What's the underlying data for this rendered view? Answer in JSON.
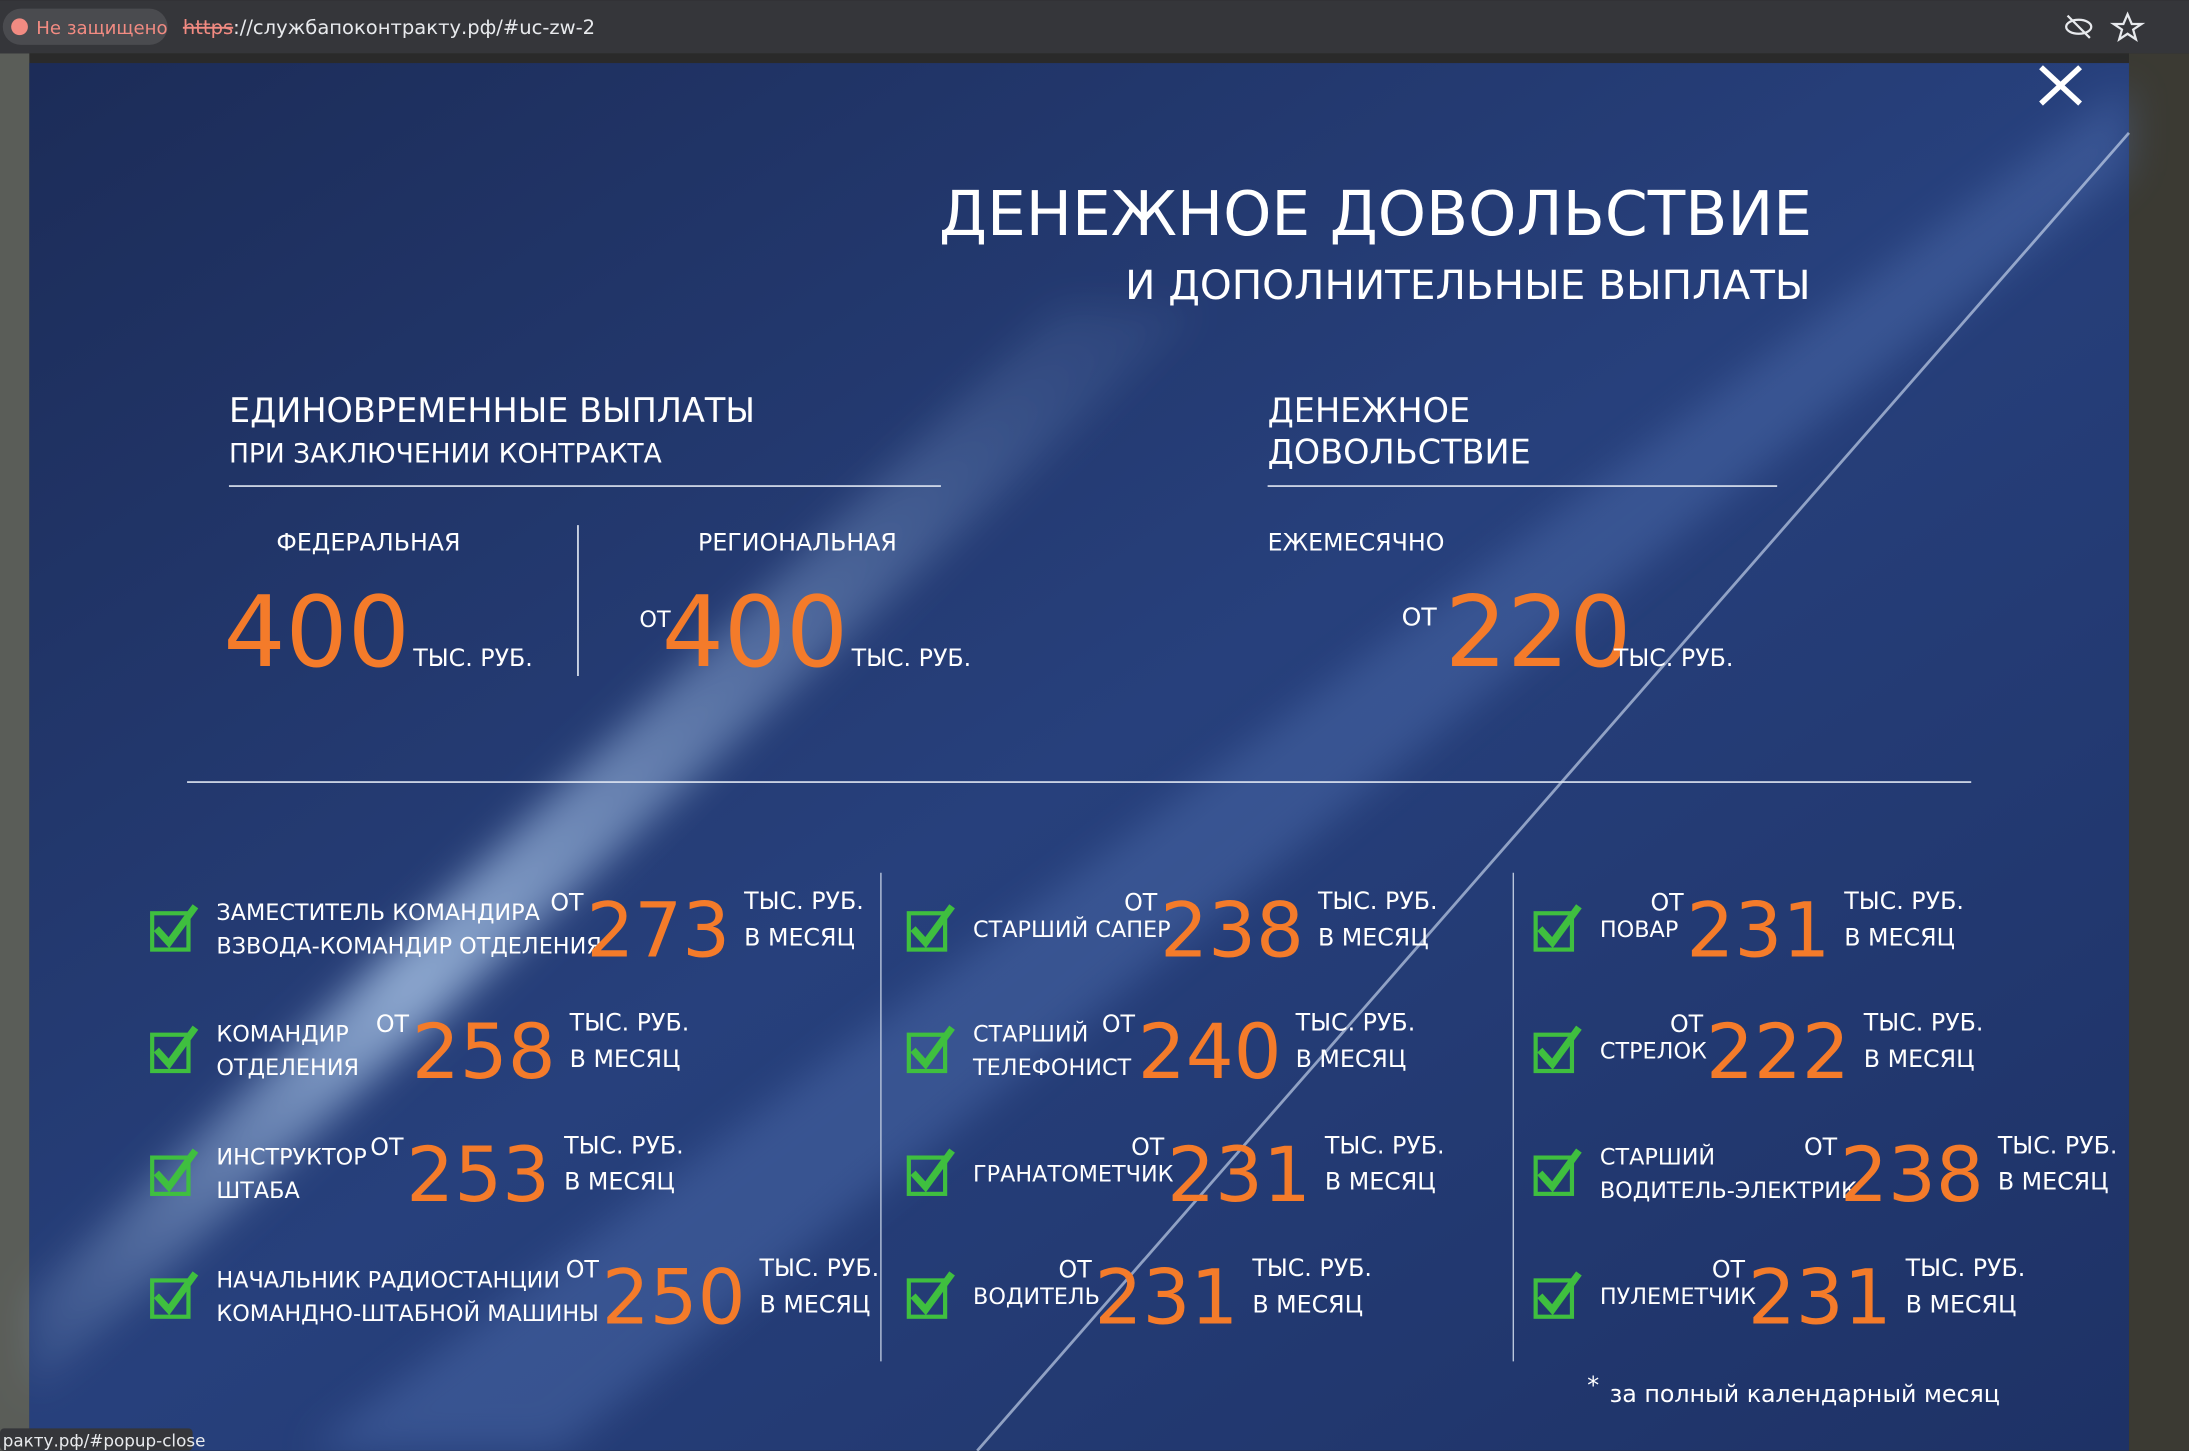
{
  "browser": {
    "security": "Не защищено",
    "url_scheme": "https",
    "url_rest": "://службапоконтракту.рф/#uc-zw-2",
    "status": "ракту.рф/#popup-close"
  },
  "popup": {
    "title": "ДЕНЕЖНОЕ ДОВОЛЬСТВИЕ",
    "subtitle": "И ДОПОЛНИТЕЛЬНЫЕ ВЫПЛАТЫ",
    "one_time": {
      "heading": "ЕДИНОВРЕМЕННЫЕ ВЫПЛАТЫ",
      "subheading": "ПРИ ЗАКЛЮЧЕНИИ КОНТРАКТА",
      "items": [
        {
          "label": "ФЕДЕРАЛЬНАЯ",
          "amount": 400,
          "unit": "ТЫС. РУБ."
        },
        {
          "label": "РЕГИОНАЛЬНАЯ",
          "prefix": "ОТ",
          "amount": 400,
          "unit": "ТЫС. РУБ."
        }
      ]
    },
    "salary": {
      "heading": [
        "ДЕНЕЖНОЕ",
        "ДОВОЛЬСТВИЕ"
      ],
      "label": "ЕЖЕМЕСЯЧНО",
      "prefix": "ОТ",
      "amount": 220,
      "unit": "ТЫС. РУБ."
    },
    "positions": {
      "columns": [
        [
          {
            "title": [
              "ЗАМЕСТИТЕЛЬ КОМАНДИРА",
              "ВЗВОДА-КОМАНДИР ОТДЕЛЕНИЯ"
            ],
            "prefix": "ОТ",
            "amount": 273,
            "unit": [
              "ТЫС. РУБ.",
              "В МЕСЯЦ"
            ]
          },
          {
            "title": [
              "КОМАНДИР",
              "ОТДЕЛЕНИЯ"
            ],
            "prefix": "ОТ",
            "amount": 258,
            "unit": [
              "ТЫС. РУБ.",
              "В МЕСЯЦ"
            ]
          },
          {
            "title": [
              "ИНСТРУКТОР",
              "ШТАБА"
            ],
            "prefix": "ОТ",
            "amount": 253,
            "unit": [
              "ТЫС. РУБ.",
              "В МЕСЯЦ"
            ]
          },
          {
            "title": [
              "НАЧАЛЬНИК РАДИОСТАНЦИИ",
              "КОМАНДНО-ШТАБНОЙ МАШИНЫ"
            ],
            "prefix": "ОТ",
            "amount": 250,
            "unit": [
              "ТЫС. РУБ.",
              "В МЕСЯЦ"
            ]
          }
        ],
        [
          {
            "title": [
              "СТАРШИЙ САПЕР"
            ],
            "prefix": "ОТ",
            "amount": 238,
            "unit": [
              "ТЫС. РУБ.",
              "В МЕСЯЦ"
            ]
          },
          {
            "title": [
              "СТАРШИЙ",
              "ТЕЛЕФОНИСТ"
            ],
            "prefix": "ОТ",
            "amount": 240,
            "unit": [
              "ТЫС. РУБ.",
              "В МЕСЯЦ"
            ]
          },
          {
            "title": [
              "ГРАНАТОМЕТЧИК"
            ],
            "prefix": "ОТ",
            "amount": 231,
            "unit": [
              "ТЫС. РУБ.",
              "В МЕСЯЦ"
            ]
          },
          {
            "title": [
              "ВОДИТЕЛЬ"
            ],
            "prefix": "ОТ",
            "amount": 231,
            "unit": [
              "ТЫС. РУБ.",
              "В МЕСЯЦ"
            ]
          }
        ],
        [
          {
            "title": [
              "ПОВАР"
            ],
            "prefix": "ОТ",
            "amount": 231,
            "unit": [
              "ТЫС. РУБ.",
              "В МЕСЯЦ"
            ]
          },
          {
            "title": [
              "СТРЕЛОК"
            ],
            "prefix": "ОТ",
            "amount": 222,
            "unit": [
              "ТЫС. РУБ.",
              "В МЕСЯЦ"
            ]
          },
          {
            "title": [
              "СТАРШИЙ",
              "ВОДИТЕЛЬ-ЭЛЕКТРИК"
            ],
            "prefix": "ОТ",
            "amount": 238,
            "unit": [
              "ТЫС. РУБ.",
              "В МЕСЯЦ"
            ]
          },
          {
            "title": [
              "ПУЛЕМЕТЧИК"
            ],
            "prefix": "ОТ",
            "amount": 231,
            "unit": [
              "ТЫС. РУБ.",
              "В МЕСЯЦ"
            ]
          }
        ]
      ]
    },
    "footnote": {
      "mark": "*",
      "text": "за полный календарный месяц"
    }
  }
}
